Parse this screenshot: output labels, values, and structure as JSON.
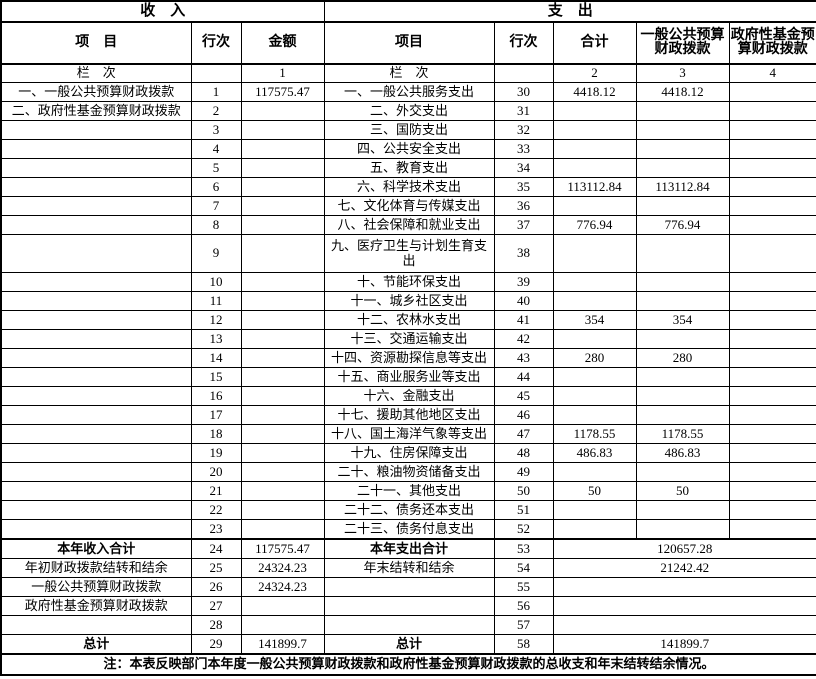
{
  "table": {
    "header": {
      "income_title": "收　入",
      "expense_title": "支　出",
      "income_item": "项　目",
      "income_line": "行次",
      "income_amount": "金额",
      "expense_item": "项目",
      "expense_line": "行次",
      "expense_total": "合计",
      "expense_general": "一般公共预算财政拨款",
      "expense_fund": "政府性基金预算财政拨款",
      "income_lanci_label": "栏　次",
      "income_col_num": "1",
      "expense_lanci_label": "栏　次",
      "expense_col_num_total": "2",
      "expense_col_num_general": "3",
      "expense_col_num_fund": "4"
    },
    "rows": [
      {
        "left_item": "一、一般公共预算财政拨款",
        "left_line": "1",
        "left_amount": "117575.47",
        "right_item": "一、一般公共服务支出",
        "right_line": "30",
        "right_total": "4418.12",
        "right_general": "4418.12",
        "right_fund": "",
        "tall": false
      },
      {
        "left_item": "二、政府性基金预算财政拨款",
        "left_line": "2",
        "left_amount": "",
        "right_item": "二、外交支出",
        "right_line": "31",
        "right_total": "",
        "right_general": "",
        "right_fund": "",
        "tall": false
      },
      {
        "left_item": "",
        "left_line": "3",
        "left_amount": "",
        "right_item": "三、国防支出",
        "right_line": "32",
        "right_total": "",
        "right_general": "",
        "right_fund": "",
        "tall": false
      },
      {
        "left_item": "",
        "left_line": "4",
        "left_amount": "",
        "right_item": "四、公共安全支出",
        "right_line": "33",
        "right_total": "",
        "right_general": "",
        "right_fund": "",
        "tall": false
      },
      {
        "left_item": "",
        "left_line": "5",
        "left_amount": "",
        "right_item": "五、教育支出",
        "right_line": "34",
        "right_total": "",
        "right_general": "",
        "right_fund": "",
        "tall": false
      },
      {
        "left_item": "",
        "left_line": "6",
        "left_amount": "",
        "right_item": "六、科学技术支出",
        "right_line": "35",
        "right_total": "113112.84",
        "right_general": "113112.84",
        "right_fund": "",
        "tall": false
      },
      {
        "left_item": "",
        "left_line": "7",
        "left_amount": "",
        "right_item": "七、文化体育与传媒支出",
        "right_line": "36",
        "right_total": "",
        "right_general": "",
        "right_fund": "",
        "tall": false
      },
      {
        "left_item": "",
        "left_line": "8",
        "left_amount": "",
        "right_item": "八、社会保障和就业支出",
        "right_line": "37",
        "right_total": "776.94",
        "right_general": "776.94",
        "right_fund": "",
        "tall": false
      },
      {
        "left_item": "",
        "left_line": "9",
        "left_amount": "",
        "right_item": "九、医疗卫生与计划生育支出",
        "right_line": "38",
        "right_total": "",
        "right_general": "",
        "right_fund": "",
        "tall": true
      },
      {
        "left_item": "",
        "left_line": "10",
        "left_amount": "",
        "right_item": "十、节能环保支出",
        "right_line": "39",
        "right_total": "",
        "right_general": "",
        "right_fund": "",
        "tall": false
      },
      {
        "left_item": "",
        "left_line": "11",
        "left_amount": "",
        "right_item": "十一、城乡社区支出",
        "right_line": "40",
        "right_total": "",
        "right_general": "",
        "right_fund": "",
        "tall": false
      },
      {
        "left_item": "",
        "left_line": "12",
        "left_amount": "",
        "right_item": "十二、农林水支出",
        "right_line": "41",
        "right_total": "354",
        "right_general": "354",
        "right_fund": "",
        "tall": false
      },
      {
        "left_item": "",
        "left_line": "13",
        "left_amount": "",
        "right_item": "十三、交通运输支出",
        "right_line": "42",
        "right_total": "",
        "right_general": "",
        "right_fund": "",
        "tall": false
      },
      {
        "left_item": "",
        "left_line": "14",
        "left_amount": "",
        "right_item": "十四、资源勘探信息等支出",
        "right_line": "43",
        "right_total": "280",
        "right_general": "280",
        "right_fund": "",
        "tall": false
      },
      {
        "left_item": "",
        "left_line": "15",
        "left_amount": "",
        "right_item": "十五、商业服务业等支出",
        "right_line": "44",
        "right_total": "",
        "right_general": "",
        "right_fund": "",
        "tall": false
      },
      {
        "left_item": "",
        "left_line": "16",
        "left_amount": "",
        "right_item": "十六、金融支出",
        "right_line": "45",
        "right_total": "",
        "right_general": "",
        "right_fund": "",
        "tall": false
      },
      {
        "left_item": "",
        "left_line": "17",
        "left_amount": "",
        "right_item": "十七、援助其他地区支出",
        "right_line": "46",
        "right_total": "",
        "right_general": "",
        "right_fund": "",
        "tall": false
      },
      {
        "left_item": "",
        "left_line": "18",
        "left_amount": "",
        "right_item": "十八、国土海洋气象等支出",
        "right_line": "47",
        "right_total": "1178.55",
        "right_general": "1178.55",
        "right_fund": "",
        "tall": false
      },
      {
        "left_item": "",
        "left_line": "19",
        "left_amount": "",
        "right_item": "十九、住房保障支出",
        "right_line": "48",
        "right_total": "486.83",
        "right_general": "486.83",
        "right_fund": "",
        "tall": false
      },
      {
        "left_item": "",
        "left_line": "20",
        "left_amount": "",
        "right_item": "二十、粮油物资储备支出",
        "right_line": "49",
        "right_total": "",
        "right_general": "",
        "right_fund": "",
        "tall": false
      },
      {
        "left_item": "",
        "left_line": "21",
        "left_amount": "",
        "right_item": "二十一、其他支出",
        "right_line": "50",
        "right_total": "50",
        "right_general": "50",
        "right_fund": "",
        "tall": false
      },
      {
        "left_item": "",
        "left_line": "22",
        "left_amount": "",
        "right_item": "二十二、债务还本支出",
        "right_line": "51",
        "right_total": "",
        "right_general": "",
        "right_fund": "",
        "tall": false
      },
      {
        "left_item": "",
        "left_line": "23",
        "left_amount": "",
        "right_item": "二十三、债务付息支出",
        "right_line": "52",
        "right_total": "",
        "right_general": "",
        "right_fund": "",
        "tall": false
      }
    ],
    "summary_rows": [
      {
        "left_item": "本年收入合计",
        "left_bold": true,
        "left_line": "24",
        "left_amount": "117575.47",
        "right_item": "本年支出合计",
        "right_bold": true,
        "right_line": "53",
        "right_value": "120657.28"
      },
      {
        "left_item": "年初财政拨款结转和结余",
        "left_bold": false,
        "left_line": "25",
        "left_amount": "24324.23",
        "right_item": "年末结转和结余",
        "right_bold": false,
        "right_line": "54",
        "right_value": "21242.42"
      },
      {
        "left_item": "一般公共预算财政拨款",
        "left_bold": false,
        "left_line": "26",
        "left_amount": "24324.23",
        "right_item": "",
        "right_bold": false,
        "right_line": "55",
        "right_value": ""
      },
      {
        "left_item": "政府性基金预算财政拨款",
        "left_bold": false,
        "left_line": "27",
        "left_amount": "",
        "right_item": "",
        "right_bold": false,
        "right_line": "56",
        "right_value": ""
      },
      {
        "left_item": "",
        "left_bold": false,
        "left_line": "28",
        "left_amount": "",
        "right_item": "",
        "right_bold": false,
        "right_line": "57",
        "right_value": ""
      },
      {
        "left_item": "总计",
        "left_bold": true,
        "left_line": "29",
        "left_amount": "141899.7",
        "right_item": "总计",
        "right_bold": true,
        "right_line": "58",
        "right_value": "141899.7"
      }
    ],
    "note": "注：本表反映部门本年度一般公共预算财政拨款和政府性基金预算财政拨款的总收支和年末结转结余情况。"
  }
}
